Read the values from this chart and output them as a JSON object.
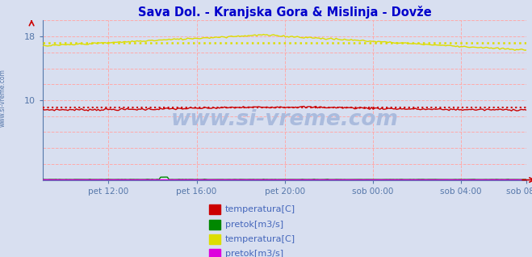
{
  "title": "Sava Dol. - Kranjska Gora & Mislinja - Dovže",
  "title_color": "#0000cc",
  "background_color": "#d8dff0",
  "plot_bg_color": "#d8dff0",
  "grid_color": "#ffaaaa",
  "grid_style": "--",
  "ylim": [
    0,
    20
  ],
  "ytick_positions": [
    10,
    18
  ],
  "ytick_labels": [
    "10",
    "18"
  ],
  "xtick_labels": [
    "pet 12:00",
    "pet 16:00",
    "pet 20:00",
    "sob 00:00",
    "sob 04:00",
    "sob 08:00"
  ],
  "xtick_positions": [
    3,
    7,
    11,
    15,
    19,
    22
  ],
  "grid_y_positions": [
    0,
    2,
    4,
    6,
    8,
    10,
    12,
    14,
    16,
    18,
    20
  ],
  "watermark": "www.si-vreme.com",
  "watermark_color": "#aabbdd",
  "side_label": "www.si-vreme.com",
  "legend_items": [
    {
      "label": "temperatura[C]",
      "color": "#cc0000"
    },
    {
      "label": "pretok[m3/s]",
      "color": "#008800"
    },
    {
      "label": "temperatura[C]",
      "color": "#dddd00"
    },
    {
      "label": "pretok[m3/s]",
      "color": "#dd00dd"
    }
  ],
  "red_temp_avg": 9.1,
  "yellow_temp_avg": 17.2,
  "axis_color": "#5577aa",
  "tick_label_color": "#4466bb",
  "title_fontsize": 10.5
}
